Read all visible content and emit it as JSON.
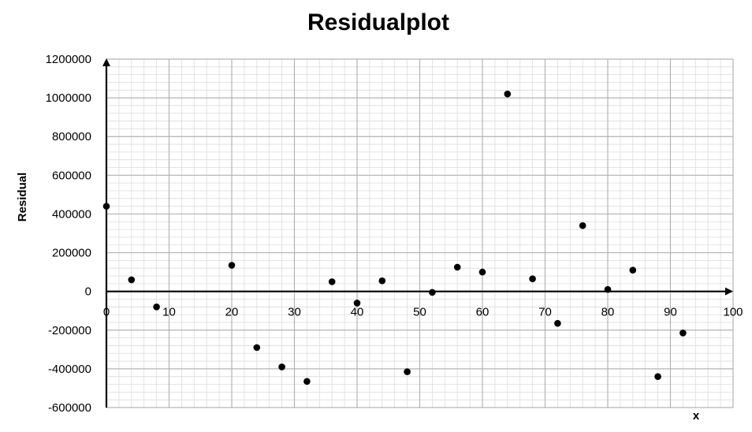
{
  "chart_data": {
    "type": "scatter",
    "title": "Residualplot",
    "xlabel": "x",
    "ylabel": "Residual",
    "xlim": [
      0,
      100
    ],
    "ylim": [
      -600000,
      1200000
    ],
    "x_ticks": [
      0,
      10,
      20,
      30,
      40,
      50,
      60,
      70,
      80,
      90,
      100
    ],
    "y_ticks": [
      1200000,
      1000000,
      800000,
      600000,
      400000,
      200000,
      0,
      -200000,
      -400000,
      -600000
    ],
    "grid": true,
    "legend": "none",
    "series": [
      {
        "x": [
          0,
          4,
          8,
          20,
          24,
          28,
          32,
          36,
          40,
          44,
          48,
          52,
          56,
          60,
          64,
          68,
          72,
          76,
          80,
          84,
          88,
          92
        ],
        "y": [
          440000,
          60000,
          -80000,
          135000,
          -290000,
          -390000,
          -465000,
          50000,
          -60000,
          55000,
          -415000,
          -5000,
          125000,
          100000,
          1020000,
          65000,
          -165000,
          340000,
          10000,
          110000,
          -440000,
          -215000
        ]
      }
    ],
    "colors": {
      "point": "#000000",
      "grid_major": "#b3b3b3",
      "grid_minor": "#dcdcdc",
      "axis": "#000000"
    }
  }
}
